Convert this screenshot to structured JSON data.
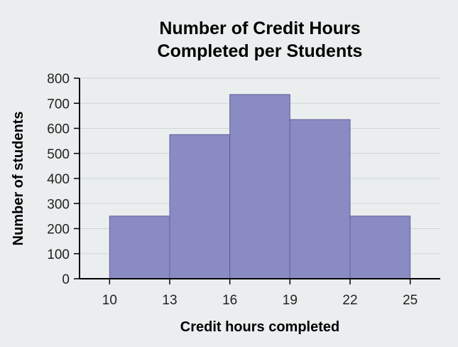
{
  "chart_data": {
    "type": "bar",
    "title_lines": [
      "Number of Credit Hours",
      "Completed per Students"
    ],
    "xlabel": "Credit hours completed",
    "ylabel": "Number of students",
    "bin_edges": [
      10,
      13,
      16,
      19,
      22,
      25
    ],
    "values": [
      250,
      575,
      735,
      635,
      250
    ],
    "ylim": [
      0,
      800
    ],
    "y_ticks": [
      0,
      100,
      200,
      300,
      400,
      500,
      600,
      700,
      800
    ],
    "x_ticks": [
      10,
      13,
      16,
      19,
      22,
      25
    ],
    "grid": true,
    "legend": false
  },
  "colors": {
    "background": "#eaeeee",
    "bar_fill": "#8b8bc4",
    "bar_edge": "#5f5f9a"
  }
}
